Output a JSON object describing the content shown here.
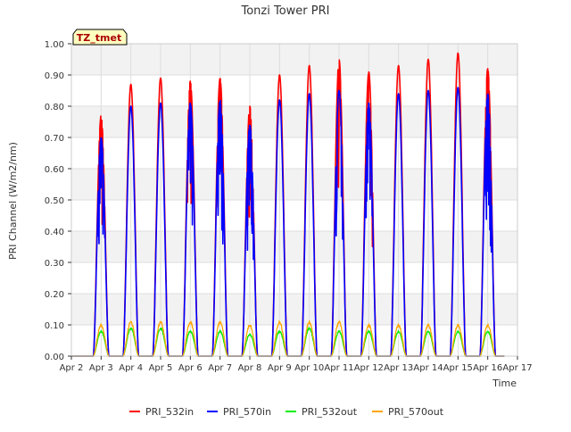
{
  "chart_data": {
    "type": "line",
    "title": "Tonzi Tower PRI",
    "xlabel": "Time",
    "ylabel": "PRI Channel (W/m2/nm)",
    "annotation": "TZ_tmet",
    "xlim": [
      2,
      17
    ],
    "ylim": [
      0,
      1.0
    ],
    "x_ticks": [
      {
        "value": 2,
        "label": "Apr 2"
      },
      {
        "value": 3,
        "label": "Apr 3"
      },
      {
        "value": 4,
        "label": "Apr 4"
      },
      {
        "value": 5,
        "label": "Apr 5"
      },
      {
        "value": 6,
        "label": "Apr 6"
      },
      {
        "value": 7,
        "label": "Apr 7"
      },
      {
        "value": 8,
        "label": "Apr 8"
      },
      {
        "value": 9,
        "label": "Apr 9"
      },
      {
        "value": 10,
        "label": "Apr 10"
      },
      {
        "value": 11,
        "label": "Apr 11"
      },
      {
        "value": 12,
        "label": "Apr 12"
      },
      {
        "value": 13,
        "label": "Apr 13"
      },
      {
        "value": 14,
        "label": "Apr 14"
      },
      {
        "value": 15,
        "label": "Apr 15"
      },
      {
        "value": 16,
        "label": "Apr 16"
      },
      {
        "value": 17,
        "label": "Apr 17"
      }
    ],
    "y_ticks": [
      {
        "value": 0.0,
        "label": "0.00"
      },
      {
        "value": 0.1,
        "label": "0.10"
      },
      {
        "value": 0.2,
        "label": "0.20"
      },
      {
        "value": 0.3,
        "label": "0.30"
      },
      {
        "value": 0.4,
        "label": "0.40"
      },
      {
        "value": 0.5,
        "label": "0.50"
      },
      {
        "value": 0.6,
        "label": "0.60"
      },
      {
        "value": 0.7,
        "label": "0.70"
      },
      {
        "value": 0.8,
        "label": "0.80"
      },
      {
        "value": 0.9,
        "label": "0.90"
      },
      {
        "value": 1.0,
        "label": "1.00"
      }
    ],
    "grid": true,
    "legend_position": "bottom",
    "day_centers": [
      3.0,
      4.0,
      5.0,
      6.0,
      7.0,
      8.0,
      9.0,
      10.0,
      11.0,
      12.0,
      13.0,
      14.0,
      15.0,
      16.0
    ],
    "series": [
      {
        "name": "PRI_532in",
        "color": "#ff0000",
        "daily_peaks": [
          0.77,
          0.87,
          0.89,
          0.88,
          0.89,
          0.8,
          0.9,
          0.93,
          0.95,
          0.91,
          0.93,
          0.95,
          0.97,
          0.92
        ]
      },
      {
        "name": "PRI_570in",
        "color": "#0000ff",
        "daily_peaks": [
          0.7,
          0.8,
          0.81,
          0.81,
          0.82,
          0.74,
          0.82,
          0.84,
          0.85,
          0.81,
          0.84,
          0.85,
          0.86,
          0.84
        ]
      },
      {
        "name": "PRI_532out",
        "color": "#00ee00",
        "daily_peaks": [
          0.08,
          0.09,
          0.09,
          0.08,
          0.08,
          0.07,
          0.08,
          0.09,
          0.08,
          0.08,
          0.08,
          0.08,
          0.08,
          0.08
        ]
      },
      {
        "name": "PRI_570out",
        "color": "#ffa500",
        "daily_peaks": [
          0.1,
          0.11,
          0.11,
          0.11,
          0.11,
          0.1,
          0.11,
          0.11,
          0.11,
          0.1,
          0.1,
          0.1,
          0.1,
          0.1
        ]
      }
    ]
  }
}
